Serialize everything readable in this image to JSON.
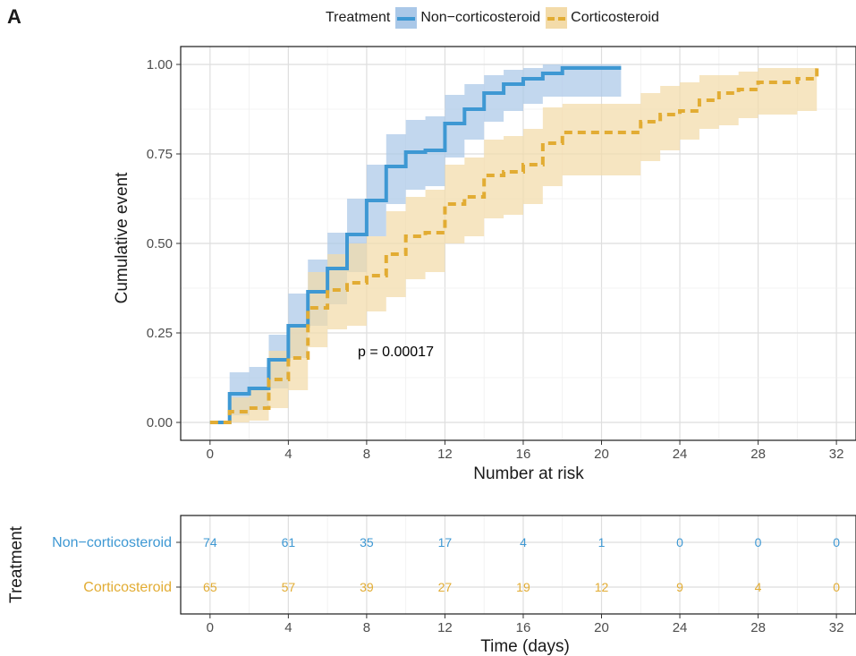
{
  "panel_label": "A",
  "legend": {
    "title": "Treatment",
    "items": [
      {
        "label": "Non−corticosteroid",
        "color": "#3e98d3",
        "fill": "#aac8e8",
        "dash": "solid"
      },
      {
        "label": "Corticosteroid",
        "color": "#e2ac33",
        "fill": "#f3dba9",
        "dash": "dashed"
      }
    ]
  },
  "chart_data": [
    {
      "type": "line",
      "subtype": "step",
      "xlabel": "Number at risk",
      "ylabel": "Cumulative event",
      "xlim": [
        -1.5,
        33
      ],
      "ylim": [
        -0.05,
        1.05
      ],
      "x_ticks": [
        0,
        4,
        8,
        12,
        16,
        20,
        24,
        28,
        32
      ],
      "y_ticks": [
        0,
        0.25,
        0.5,
        0.75,
        1
      ],
      "y_tick_labels": [
        "0.00",
        "0.25",
        "0.50",
        "0.75",
        "1.00"
      ],
      "grid": true,
      "annotation": "p = 0.00017",
      "series": [
        {
          "name": "Non−corticosteroid",
          "color": "#3e98d3",
          "dash": "solid",
          "x": [
            0,
            1,
            2,
            3,
            4,
            5,
            6,
            7,
            8,
            9,
            10,
            11,
            12,
            13,
            14,
            15,
            16,
            17,
            18,
            21
          ],
          "y": [
            0,
            0.08,
            0.095,
            0.175,
            0.27,
            0.365,
            0.43,
            0.525,
            0.62,
            0.715,
            0.755,
            0.76,
            0.835,
            0.875,
            0.92,
            0.945,
            0.96,
            0.975,
            0.99,
            0.99
          ],
          "lower": [
            0,
            0.02,
            0.035,
            0.095,
            0.18,
            0.27,
            0.33,
            0.42,
            0.52,
            0.61,
            0.65,
            0.66,
            0.74,
            0.79,
            0.84,
            0.87,
            0.89,
            0.91,
            0.91,
            0.91
          ],
          "upper": [
            0,
            0.14,
            0.155,
            0.245,
            0.36,
            0.455,
            0.53,
            0.625,
            0.72,
            0.805,
            0.845,
            0.855,
            0.915,
            0.945,
            0.97,
            0.985,
            0.99,
            1.0,
            1.0,
            1.0
          ]
        },
        {
          "name": "Corticosteroid",
          "color": "#e2ac33",
          "dash": "dashed",
          "x": [
            0,
            1,
            2,
            3,
            4,
            5,
            6,
            7,
            8,
            9,
            10,
            11,
            12,
            13,
            14,
            15,
            16,
            17,
            18,
            19,
            20,
            21,
            22,
            23,
            24,
            25,
            26,
            27,
            28,
            29,
            30,
            31
          ],
          "y": [
            0,
            0.03,
            0.04,
            0.12,
            0.18,
            0.32,
            0.37,
            0.39,
            0.41,
            0.47,
            0.52,
            0.53,
            0.61,
            0.63,
            0.69,
            0.7,
            0.72,
            0.78,
            0.81,
            0.81,
            0.81,
            0.81,
            0.84,
            0.86,
            0.87,
            0.9,
            0.92,
            0.93,
            0.95,
            0.95,
            0.96,
            1.0
          ],
          "lower": [
            0,
            0.0,
            0.005,
            0.04,
            0.09,
            0.21,
            0.26,
            0.27,
            0.31,
            0.35,
            0.4,
            0.42,
            0.5,
            0.52,
            0.57,
            0.58,
            0.61,
            0.66,
            0.69,
            0.69,
            0.69,
            0.69,
            0.73,
            0.76,
            0.79,
            0.82,
            0.83,
            0.85,
            0.86,
            0.86,
            0.87,
            0.87
          ],
          "upper": [
            0,
            0.07,
            0.09,
            0.2,
            0.27,
            0.42,
            0.47,
            0.5,
            0.52,
            0.59,
            0.63,
            0.65,
            0.72,
            0.74,
            0.79,
            0.8,
            0.82,
            0.88,
            0.89,
            0.89,
            0.89,
            0.89,
            0.92,
            0.94,
            0.95,
            0.97,
            0.97,
            0.98,
            0.99,
            0.99,
            0.99,
            1.0
          ]
        }
      ]
    },
    {
      "type": "table",
      "title": "Number at risk",
      "xlabel": "Time (days)",
      "ylabel": "Treatment",
      "xlim": [
        -1.5,
        33
      ],
      "x_ticks": [
        0,
        4,
        8,
        12,
        16,
        20,
        24,
        28,
        32
      ],
      "rows": [
        {
          "name": "Non−corticosteroid",
          "color": "#3e98d3",
          "values": [
            74,
            61,
            35,
            17,
            4,
            1,
            0,
            0,
            0
          ]
        },
        {
          "name": "Corticosteroid",
          "color": "#e2ac33",
          "values": [
            65,
            57,
            39,
            27,
            19,
            12,
            9,
            4,
            0
          ]
        }
      ]
    }
  ]
}
